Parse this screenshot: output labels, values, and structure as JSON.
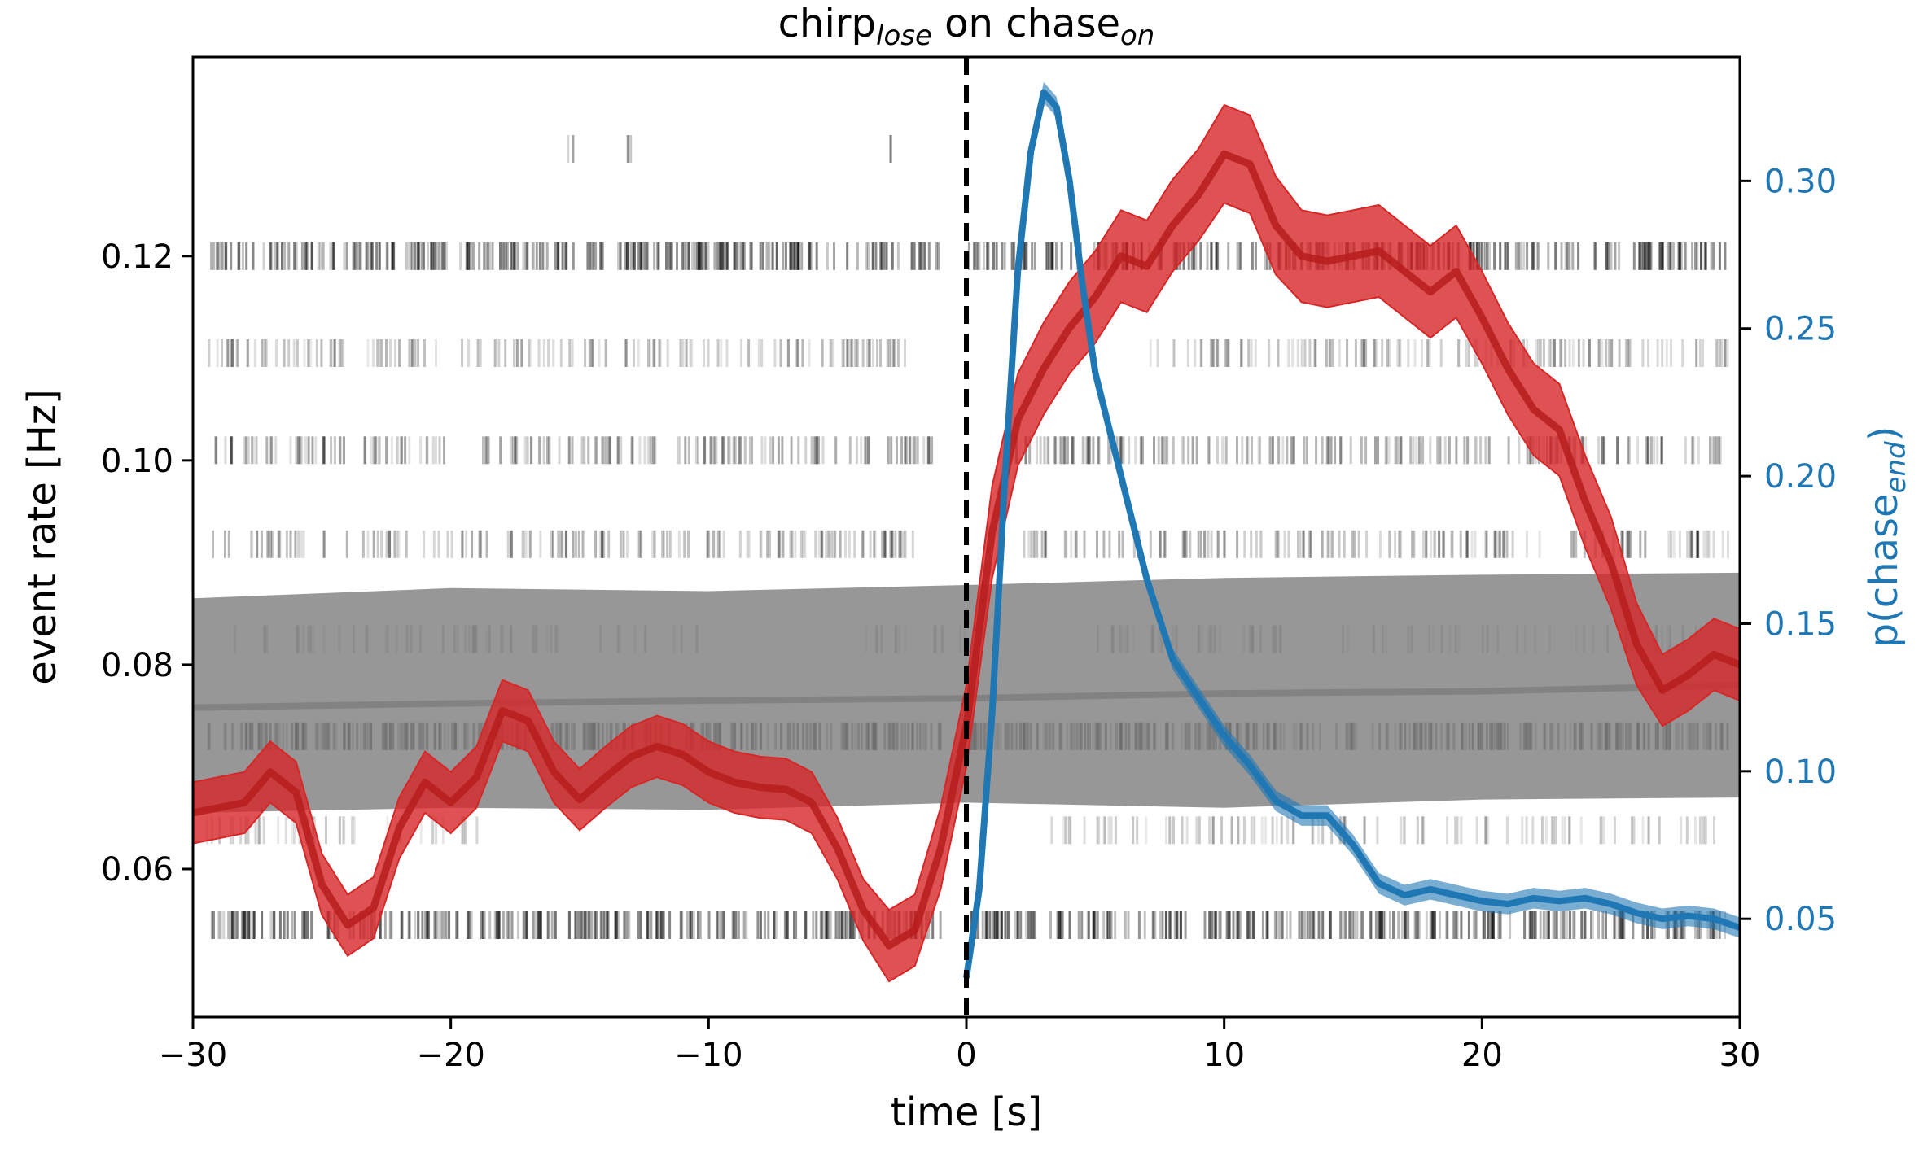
{
  "chart_data": {
    "type": "line",
    "title": {
      "main": "chirp",
      "main_sub": "lose",
      "mid": " on chase",
      "mid_sub": "on"
    },
    "xlabel": "time [s]",
    "ylabel_left": "event rate [Hz]",
    "ylabel_right": {
      "main": "p(chase",
      "sub": "end",
      "close": ")"
    },
    "xlim": [
      -30,
      30
    ],
    "ylim_left": [
      0.0455,
      0.1395
    ],
    "ylim_right": [
      0.0167,
      0.342
    ],
    "xticks": [
      -30,
      -20,
      -10,
      0,
      10,
      20,
      30
    ],
    "xtick_labels": [
      "−30",
      "−20",
      "−10",
      "0",
      "10",
      "20",
      "30"
    ],
    "yticks_left": [
      0.06,
      0.08,
      0.1,
      0.12
    ],
    "ytick_labels_left": [
      "0.06",
      "0.08",
      "0.10",
      "0.12"
    ],
    "yticks_right": [
      0.05,
      0.1,
      0.15,
      0.2,
      0.25,
      0.3
    ],
    "ytick_labels_right": [
      "0.05",
      "0.10",
      "0.15",
      "0.20",
      "0.25",
      "0.30"
    ],
    "vline_x": 0,
    "colors": {
      "rate": "#d62728",
      "rate_band": "#d62728",
      "shuffle": "#7f7f7f",
      "shuffle_band": "#808080",
      "chase_end": "#1f77b4",
      "raster": "#000000",
      "vline": "#000000"
    },
    "series": [
      {
        "role": "chirp_rate",
        "axis": "left",
        "x": [
          -30,
          -28,
          -27,
          -26,
          -25,
          -24,
          -23,
          -22,
          -21,
          -20,
          -19,
          -18,
          -17,
          -16,
          -15,
          -14,
          -13,
          -12,
          -11,
          -10,
          -9,
          -8,
          -7,
          -6,
          -5,
          -4,
          -3,
          -2,
          -1,
          0,
          1,
          2,
          3,
          4,
          5,
          6,
          7,
          8,
          9,
          10,
          11,
          12,
          13,
          14,
          15,
          16,
          17,
          18,
          19,
          20,
          21,
          22,
          23,
          24,
          25,
          26,
          27,
          28,
          29,
          30
        ],
        "y": [
          0.0655,
          0.0665,
          0.0695,
          0.0675,
          0.0585,
          0.0545,
          0.0562,
          0.064,
          0.0685,
          0.0665,
          0.069,
          0.0755,
          0.0745,
          0.0695,
          0.0668,
          0.069,
          0.071,
          0.072,
          0.0712,
          0.0695,
          0.0685,
          0.068,
          0.0678,
          0.0665,
          0.062,
          0.056,
          0.0525,
          0.054,
          0.062,
          0.074,
          0.093,
          0.104,
          0.109,
          0.113,
          0.116,
          0.12,
          0.119,
          0.123,
          0.126,
          0.13,
          0.129,
          0.123,
          0.12,
          0.1195,
          0.12,
          0.1205,
          0.1185,
          0.1165,
          0.1185,
          0.114,
          0.109,
          0.105,
          0.103,
          0.096,
          0.09,
          0.082,
          0.0775,
          0.079,
          0.081,
          0.08
        ],
        "band": [
          0.003,
          0.003,
          0.003,
          0.003,
          0.003,
          0.003,
          0.003,
          0.003,
          0.003,
          0.003,
          0.003,
          0.003,
          0.003,
          0.003,
          0.003,
          0.003,
          0.003,
          0.003,
          0.003,
          0.003,
          0.003,
          0.003,
          0.003,
          0.003,
          0.003,
          0.003,
          0.0035,
          0.0035,
          0.004,
          0.004,
          0.0045,
          0.0045,
          0.0045,
          0.0045,
          0.0045,
          0.0045,
          0.0045,
          0.0045,
          0.0045,
          0.0048,
          0.0048,
          0.0048,
          0.0045,
          0.0045,
          0.0045,
          0.0045,
          0.0045,
          0.0045,
          0.0045,
          0.0045,
          0.0045,
          0.0045,
          0.0045,
          0.0045,
          0.0045,
          0.004,
          0.0035,
          0.0035,
          0.0035,
          0.0035
        ]
      },
      {
        "role": "shuffled_rate",
        "axis": "left",
        "x": [
          -30,
          -20,
          -10,
          0,
          10,
          20,
          30
        ],
        "y": [
          0.0758,
          0.0762,
          0.0765,
          0.0767,
          0.0772,
          0.0774,
          0.078
        ],
        "lower": [
          0.0655,
          0.066,
          0.0658,
          0.0665,
          0.066,
          0.0668,
          0.067
        ],
        "upper": [
          0.0865,
          0.0875,
          0.0872,
          0.0878,
          0.0885,
          0.0888,
          0.089
        ]
      },
      {
        "role": "chase_end_probability",
        "axis": "right",
        "x": [
          0,
          0.5,
          1,
          1.5,
          2,
          2.5,
          3,
          3.5,
          4,
          4.5,
          5,
          6,
          7,
          8,
          9,
          10,
          11,
          12,
          13,
          14,
          15,
          16,
          17,
          18,
          19,
          20,
          21,
          22,
          23,
          24,
          25,
          26,
          27,
          28,
          29,
          30
        ],
        "y": [
          0.03,
          0.06,
          0.12,
          0.2,
          0.27,
          0.31,
          0.33,
          0.325,
          0.3,
          0.265,
          0.235,
          0.2,
          0.165,
          0.138,
          0.125,
          0.112,
          0.102,
          0.09,
          0.085,
          0.085,
          0.075,
          0.062,
          0.058,
          0.06,
          0.058,
          0.056,
          0.055,
          0.057,
          0.056,
          0.057,
          0.055,
          0.052,
          0.05,
          0.051,
          0.05,
          0.047
        ],
        "band": 0.0035
      }
    ],
    "raster_rows": [
      {
        "y": 0.12,
        "segments": [
          [
            -29.5,
            -1
          ],
          [
            0,
            29.5
          ]
        ],
        "density": 0.55,
        "alpha": 0.42
      },
      {
        "y": 0.1105,
        "segments": [
          [
            -29.5,
            -2
          ],
          [
            7,
            29.5
          ]
        ],
        "density": 0.35,
        "alpha": 0.22
      },
      {
        "y": 0.101,
        "segments": [
          [
            -29.5,
            -24
          ],
          [
            -23.5,
            -20
          ],
          [
            -19,
            -1
          ],
          [
            1.5,
            29.5
          ]
        ],
        "density": 0.4,
        "alpha": 0.28
      },
      {
        "y": 0.0918,
        "segments": [
          [
            -29.5,
            -2
          ],
          [
            2,
            29.5
          ]
        ],
        "density": 0.35,
        "alpha": 0.25
      },
      {
        "y": 0.0825,
        "segments": [
          [
            -29,
            -10
          ],
          [
            -5,
            0
          ],
          [
            5,
            29
          ]
        ],
        "density": 0.18,
        "alpha": 0.22
      },
      {
        "y": 0.073,
        "segments": [
          [
            -29.5,
            -1
          ],
          [
            0,
            29.5
          ]
        ],
        "density": 0.6,
        "alpha": 0.45
      },
      {
        "y": 0.0638,
        "segments": [
          [
            -29.5,
            -19
          ],
          [
            3,
            29.5
          ]
        ],
        "density": 0.25,
        "alpha": 0.18
      },
      {
        "y": 0.0545,
        "segments": [
          [
            -29.5,
            -1
          ],
          [
            0,
            29.5
          ]
        ],
        "density": 0.55,
        "alpha": 0.42
      },
      {
        "y": 0.1305,
        "segments": [
          [
            -15.5,
            -15.3
          ],
          [
            -13.2,
            -13.0
          ],
          [
            -3.0,
            -2.8
          ]
        ],
        "density": 0.9,
        "alpha": 0.25
      }
    ]
  }
}
